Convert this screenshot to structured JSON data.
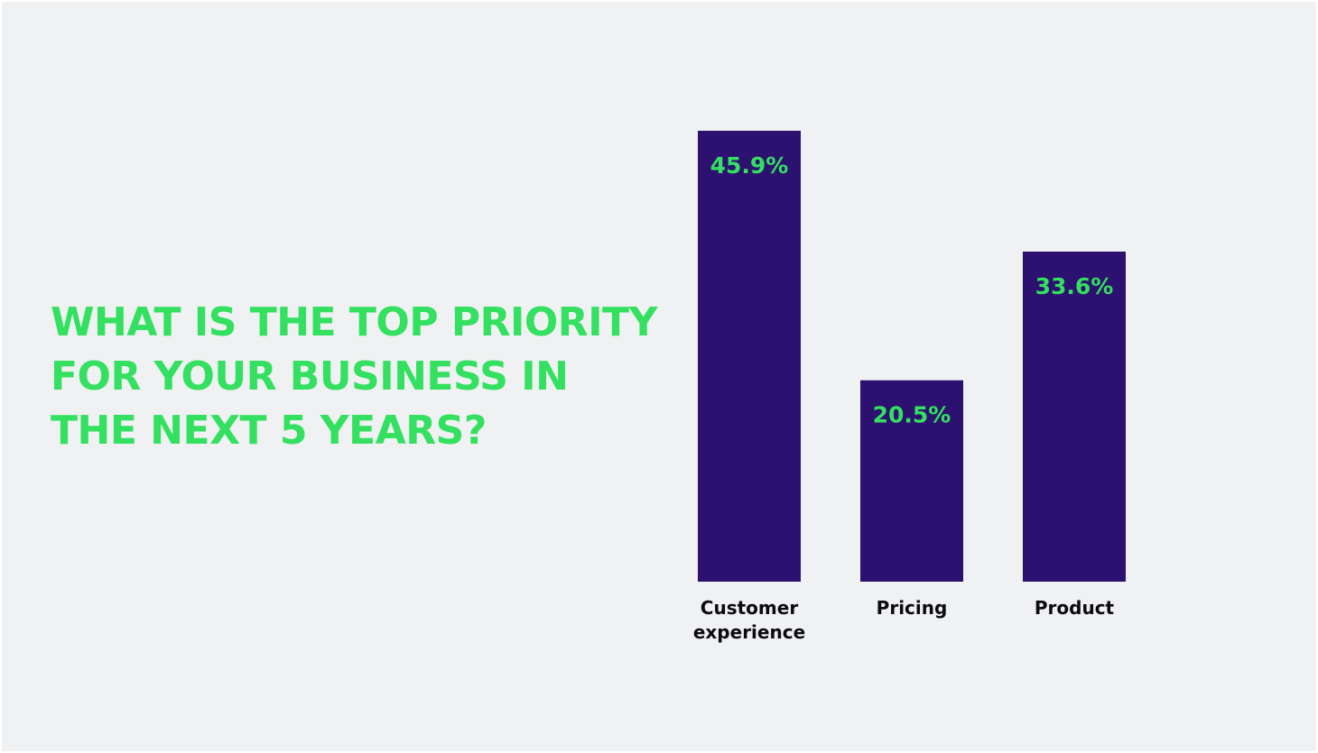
{
  "headline": "WHAT IS THE TOP PRIORITY\nFOR YOUR BUSINESS IN\nTHE NEXT 5 YEARS?",
  "colors": {
    "background": "#f0f1f3",
    "headline": "#33e05f",
    "bar": "#2c1170",
    "value_label": "#33e05f",
    "category_label": "#0b0b0f"
  },
  "chart_data": {
    "type": "bar",
    "categories": [
      "Customer\nexperience",
      "Pricing",
      "Product"
    ],
    "values": [
      45.9,
      20.5,
      33.6
    ],
    "value_labels": [
      "45.9%",
      "20.5%",
      "33.6%"
    ],
    "ylim": [
      0,
      45.9
    ],
    "grid": false,
    "legend": "none"
  }
}
